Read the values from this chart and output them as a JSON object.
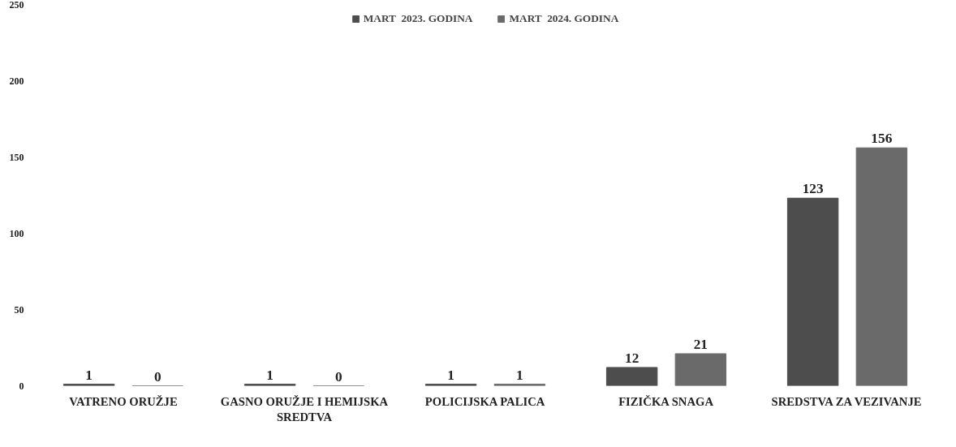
{
  "chart_data": {
    "type": "bar",
    "categories": [
      "VATRENO ORUŽJE",
      "GASNO ORUŽJE I HEMIJSKA SREDTVA",
      "POLICIJSKA PALICA",
      "FIZIČKA SNAGA",
      "SREDSTVA ZA VEZIVANJE"
    ],
    "series": [
      {
        "name": "MART  2023. GODINA",
        "color": "#4d4d4d",
        "values": [
          1,
          1,
          1,
          12,
          123
        ]
      },
      {
        "name": "MART  2024. GODINA",
        "color": "#6a6a6a",
        "values": [
          0,
          0,
          1,
          21,
          156
        ]
      }
    ],
    "ylim": [
      0,
      250
    ],
    "yticks": [
      0,
      50,
      100,
      150,
      200,
      250
    ],
    "data_labels": true,
    "legend": "top",
    "grid": false
  }
}
